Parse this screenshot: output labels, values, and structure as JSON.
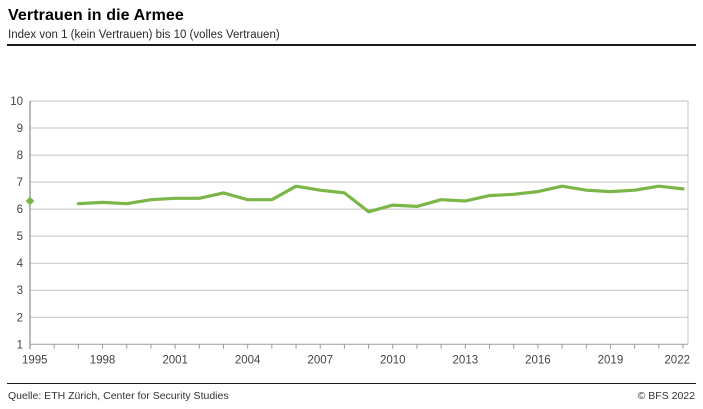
{
  "header": {
    "title": "Vertrauen in die Armee",
    "subtitle": "Index von 1 (kein Vertrauen) bis 10 (volles Vertrauen)"
  },
  "footer": {
    "source": "Quelle: ETH Zürich, Center for Security Studies",
    "copyright": "© BFS 2022"
  },
  "chart_data": {
    "type": "line",
    "title": "Vertrauen in die Armee",
    "subtitle": "Index von 1 (kein Vertrauen) bis 10 (volles Vertrauen)",
    "xlabel": "",
    "ylabel": "",
    "ylim": [
      1,
      10
    ],
    "yticks": [
      1,
      2,
      3,
      4,
      5,
      6,
      7,
      8,
      9,
      10
    ],
    "x_range": [
      1995,
      2022
    ],
    "x_labeled_ticks": [
      1995,
      1998,
      2001,
      2004,
      2007,
      2010,
      2013,
      2016,
      2019,
      2022
    ],
    "grid": true,
    "legend_position": "none",
    "colors": {
      "line": "#7ab648",
      "grid": "#c2c2c2",
      "axis": "#9b9b9b",
      "tick_label": "#444444"
    },
    "isolated_point": {
      "year": 1995,
      "value": 6.3
    },
    "series": [
      {
        "name": "Vertrauen in die Armee",
        "years": [
          1997,
          1998,
          1999,
          2000,
          2001,
          2002,
          2003,
          2004,
          2005,
          2006,
          2007,
          2008,
          2009,
          2010,
          2011,
          2012,
          2013,
          2014,
          2015,
          2016,
          2017,
          2018,
          2019,
          2020,
          2021,
          2022
        ],
        "values": [
          6.2,
          6.25,
          6.2,
          6.35,
          6.4,
          6.4,
          6.6,
          6.35,
          6.35,
          6.85,
          6.7,
          6.6,
          5.9,
          6.15,
          6.1,
          6.35,
          6.3,
          6.5,
          6.55,
          6.65,
          6.85,
          6.7,
          6.65,
          6.7,
          6.85,
          6.75
        ]
      }
    ]
  }
}
